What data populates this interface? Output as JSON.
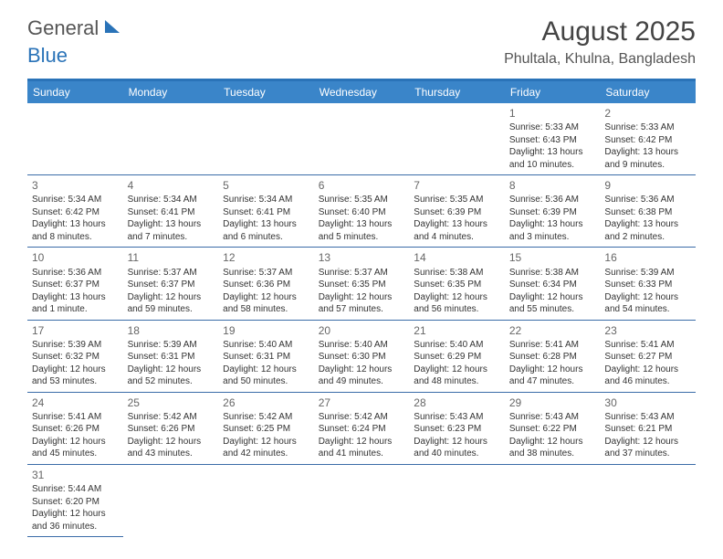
{
  "logo": {
    "text1": "General",
    "text2": "Blue"
  },
  "title": "August 2025",
  "location": "Phultala, Khulna, Bangladesh",
  "colors": {
    "header_bg": "#3a85c9",
    "border_top": "#2a73b8",
    "row_border": "#3a6ca8",
    "text": "#333333",
    "title_color": "#444444"
  },
  "day_names": [
    "Sunday",
    "Monday",
    "Tuesday",
    "Wednesday",
    "Thursday",
    "Friday",
    "Saturday"
  ],
  "leading_blanks": 5,
  "days": [
    {
      "n": 1,
      "sr": "5:33 AM",
      "ss": "6:43 PM",
      "dl": "13 hours and 10 minutes."
    },
    {
      "n": 2,
      "sr": "5:33 AM",
      "ss": "6:42 PM",
      "dl": "13 hours and 9 minutes."
    },
    {
      "n": 3,
      "sr": "5:34 AM",
      "ss": "6:42 PM",
      "dl": "13 hours and 8 minutes."
    },
    {
      "n": 4,
      "sr": "5:34 AM",
      "ss": "6:41 PM",
      "dl": "13 hours and 7 minutes."
    },
    {
      "n": 5,
      "sr": "5:34 AM",
      "ss": "6:41 PM",
      "dl": "13 hours and 6 minutes."
    },
    {
      "n": 6,
      "sr": "5:35 AM",
      "ss": "6:40 PM",
      "dl": "13 hours and 5 minutes."
    },
    {
      "n": 7,
      "sr": "5:35 AM",
      "ss": "6:39 PM",
      "dl": "13 hours and 4 minutes."
    },
    {
      "n": 8,
      "sr": "5:36 AM",
      "ss": "6:39 PM",
      "dl": "13 hours and 3 minutes."
    },
    {
      "n": 9,
      "sr": "5:36 AM",
      "ss": "6:38 PM",
      "dl": "13 hours and 2 minutes."
    },
    {
      "n": 10,
      "sr": "5:36 AM",
      "ss": "6:37 PM",
      "dl": "13 hours and 1 minute."
    },
    {
      "n": 11,
      "sr": "5:37 AM",
      "ss": "6:37 PM",
      "dl": "12 hours and 59 minutes."
    },
    {
      "n": 12,
      "sr": "5:37 AM",
      "ss": "6:36 PM",
      "dl": "12 hours and 58 minutes."
    },
    {
      "n": 13,
      "sr": "5:37 AM",
      "ss": "6:35 PM",
      "dl": "12 hours and 57 minutes."
    },
    {
      "n": 14,
      "sr": "5:38 AM",
      "ss": "6:35 PM",
      "dl": "12 hours and 56 minutes."
    },
    {
      "n": 15,
      "sr": "5:38 AM",
      "ss": "6:34 PM",
      "dl": "12 hours and 55 minutes."
    },
    {
      "n": 16,
      "sr": "5:39 AM",
      "ss": "6:33 PM",
      "dl": "12 hours and 54 minutes."
    },
    {
      "n": 17,
      "sr": "5:39 AM",
      "ss": "6:32 PM",
      "dl": "12 hours and 53 minutes."
    },
    {
      "n": 18,
      "sr": "5:39 AM",
      "ss": "6:31 PM",
      "dl": "12 hours and 52 minutes."
    },
    {
      "n": 19,
      "sr": "5:40 AM",
      "ss": "6:31 PM",
      "dl": "12 hours and 50 minutes."
    },
    {
      "n": 20,
      "sr": "5:40 AM",
      "ss": "6:30 PM",
      "dl": "12 hours and 49 minutes."
    },
    {
      "n": 21,
      "sr": "5:40 AM",
      "ss": "6:29 PM",
      "dl": "12 hours and 48 minutes."
    },
    {
      "n": 22,
      "sr": "5:41 AM",
      "ss": "6:28 PM",
      "dl": "12 hours and 47 minutes."
    },
    {
      "n": 23,
      "sr": "5:41 AM",
      "ss": "6:27 PM",
      "dl": "12 hours and 46 minutes."
    },
    {
      "n": 24,
      "sr": "5:41 AM",
      "ss": "6:26 PM",
      "dl": "12 hours and 45 minutes."
    },
    {
      "n": 25,
      "sr": "5:42 AM",
      "ss": "6:26 PM",
      "dl": "12 hours and 43 minutes."
    },
    {
      "n": 26,
      "sr": "5:42 AM",
      "ss": "6:25 PM",
      "dl": "12 hours and 42 minutes."
    },
    {
      "n": 27,
      "sr": "5:42 AM",
      "ss": "6:24 PM",
      "dl": "12 hours and 41 minutes."
    },
    {
      "n": 28,
      "sr": "5:43 AM",
      "ss": "6:23 PM",
      "dl": "12 hours and 40 minutes."
    },
    {
      "n": 29,
      "sr": "5:43 AM",
      "ss": "6:22 PM",
      "dl": "12 hours and 38 minutes."
    },
    {
      "n": 30,
      "sr": "5:43 AM",
      "ss": "6:21 PM",
      "dl": "12 hours and 37 minutes."
    },
    {
      "n": 31,
      "sr": "5:44 AM",
      "ss": "6:20 PM",
      "dl": "12 hours and 36 minutes."
    }
  ],
  "labels": {
    "sunrise": "Sunrise: ",
    "sunset": "Sunset: ",
    "daylight": "Daylight: "
  }
}
